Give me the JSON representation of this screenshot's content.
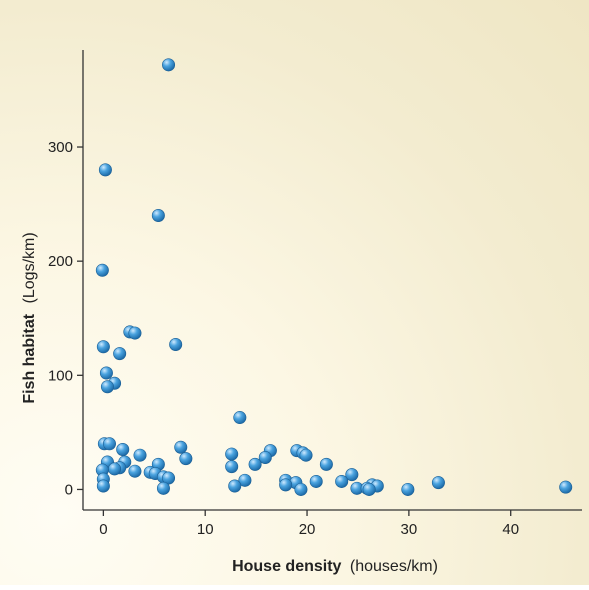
{
  "chart_data": {
    "type": "scatter",
    "title": "",
    "xlabel": {
      "bold": "House density",
      "normal": "(houses/km)"
    },
    "ylabel": {
      "bold": "Fish habitat",
      "normal": "(Logs/km)"
    },
    "xlim": [
      -2,
      47
    ],
    "ylim": [
      -18,
      385
    ],
    "xticks": [
      0,
      10,
      20,
      30,
      40
    ],
    "yticks": [
      0,
      100,
      200,
      300
    ],
    "grid": false,
    "point_color": "#3f9ad6",
    "points": [
      {
        "x": 6.4,
        "y": 372
      },
      {
        "x": 0.2,
        "y": 280
      },
      {
        "x": 5.4,
        "y": 240
      },
      {
        "x": -0.1,
        "y": 192
      },
      {
        "x": 2.6,
        "y": 138
      },
      {
        "x": 3.1,
        "y": 137
      },
      {
        "x": 7.1,
        "y": 127
      },
      {
        "x": 0.0,
        "y": 125
      },
      {
        "x": 1.6,
        "y": 119
      },
      {
        "x": 0.3,
        "y": 102
      },
      {
        "x": 1.1,
        "y": 93
      },
      {
        "x": 0.4,
        "y": 90
      },
      {
        "x": 13.4,
        "y": 63
      },
      {
        "x": 0.1,
        "y": 40
      },
      {
        "x": 0.6,
        "y": 40
      },
      {
        "x": 7.6,
        "y": 37
      },
      {
        "x": 1.9,
        "y": 35
      },
      {
        "x": 19.0,
        "y": 34
      },
      {
        "x": 16.4,
        "y": 34
      },
      {
        "x": 19.6,
        "y": 32
      },
      {
        "x": 19.9,
        "y": 30
      },
      {
        "x": 12.6,
        "y": 31
      },
      {
        "x": 3.6,
        "y": 30
      },
      {
        "x": 15.9,
        "y": 28
      },
      {
        "x": 8.1,
        "y": 27
      },
      {
        "x": 2.1,
        "y": 24
      },
      {
        "x": 0.4,
        "y": 24
      },
      {
        "x": 14.9,
        "y": 22
      },
      {
        "x": 21.9,
        "y": 22
      },
      {
        "x": 5.4,
        "y": 22
      },
      {
        "x": 12.6,
        "y": 20
      },
      {
        "x": 1.6,
        "y": 19
      },
      {
        "x": 1.1,
        "y": 18
      },
      {
        "x": -0.1,
        "y": 17
      },
      {
        "x": 3.1,
        "y": 16
      },
      {
        "x": 4.6,
        "y": 15
      },
      {
        "x": 5.1,
        "y": 14
      },
      {
        "x": 24.4,
        "y": 13
      },
      {
        "x": 5.9,
        "y": 11
      },
      {
        "x": 6.4,
        "y": 10
      },
      {
        "x": 0.0,
        "y": 9
      },
      {
        "x": 13.9,
        "y": 8
      },
      {
        "x": 17.9,
        "y": 8
      },
      {
        "x": 20.9,
        "y": 7
      },
      {
        "x": 23.4,
        "y": 7
      },
      {
        "x": 18.9,
        "y": 6
      },
      {
        "x": 32.9,
        "y": 6
      },
      {
        "x": 17.9,
        "y": 4
      },
      {
        "x": 26.4,
        "y": 4
      },
      {
        "x": 0.0,
        "y": 3
      },
      {
        "x": 12.9,
        "y": 3
      },
      {
        "x": 26.9,
        "y": 3
      },
      {
        "x": 45.4,
        "y": 2
      },
      {
        "x": 24.9,
        "y": 1
      },
      {
        "x": 25.9,
        "y": 1
      },
      {
        "x": 5.9,
        "y": 1
      },
      {
        "x": 19.4,
        "y": 0
      },
      {
        "x": 29.9,
        "y": 0
      },
      {
        "x": 26.1,
        "y": 0
      }
    ]
  }
}
